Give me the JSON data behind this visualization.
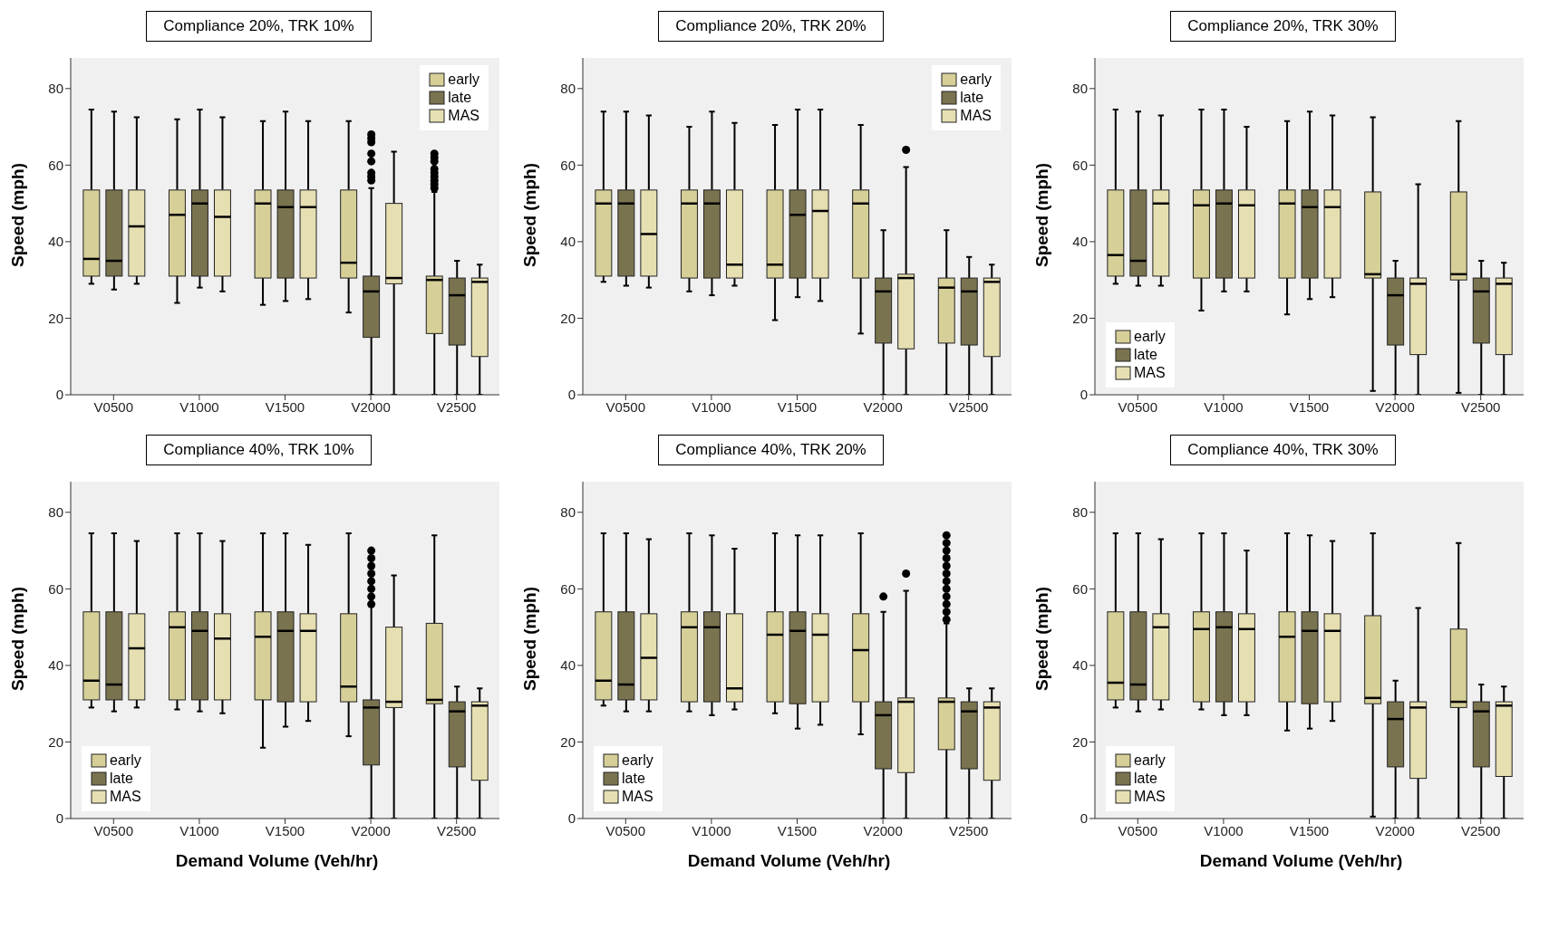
{
  "chart_data": [
    {
      "type": "box",
      "title": "Compliance 20%,  TRK 10%",
      "ylabel": "Speed (mph)",
      "categories": [
        "V0500",
        "V1000",
        "V1500",
        "V2000",
        "V2500"
      ],
      "ylim": [
        0,
        88
      ],
      "yticks": [
        0,
        20,
        40,
        60,
        80
      ],
      "legend": "top right",
      "series": [
        {
          "name": "early",
          "color": "#d7cf98",
          "boxes": [
            {
              "low": 29,
              "q1": 31,
              "median": 35.5,
              "q3": 53.5,
              "high": 74.5
            },
            {
              "low": 24,
              "q1": 31,
              "median": 47,
              "q3": 53.5,
              "high": 72
            },
            {
              "low": 23.5,
              "q1": 30.5,
              "median": 50,
              "q3": 53.5,
              "high": 71.5
            },
            {
              "low": 21.5,
              "q1": 30.5,
              "median": 34.5,
              "q3": 53.5,
              "high": 71.5
            },
            {
              "low": 0,
              "q1": 16,
              "median": 30,
              "q3": 31,
              "high": 53,
              "outliers": [
                54,
                55,
                56,
                57,
                58,
                59,
                61,
                62,
                63
              ]
            }
          ]
        },
        {
          "name": "late",
          "color": "#7a734f",
          "boxes": [
            {
              "low": 27.5,
              "q1": 31,
              "median": 35,
              "q3": 53.5,
              "high": 74
            },
            {
              "low": 28,
              "q1": 31,
              "median": 50,
              "q3": 53.5,
              "high": 74.5
            },
            {
              "low": 24.5,
              "q1": 30.5,
              "median": 49,
              "q3": 53.5,
              "high": 74
            },
            {
              "low": 0,
              "q1": 15,
              "median": 27,
              "q3": 31,
              "high": 54,
              "outliers": [
                56,
                57,
                58,
                61,
                63,
                66,
                67,
                68
              ]
            },
            {
              "low": 0,
              "q1": 13,
              "median": 26,
              "q3": 30.5,
              "high": 35
            }
          ]
        },
        {
          "name": "MAS",
          "color": "#e6dfb2",
          "boxes": [
            {
              "low": 29,
              "q1": 31,
              "median": 44,
              "q3": 53.5,
              "high": 72.5
            },
            {
              "low": 27,
              "q1": 31,
              "median": 46.5,
              "q3": 53.5,
              "high": 72.5
            },
            {
              "low": 25,
              "q1": 30.5,
              "median": 49,
              "q3": 53.5,
              "high": 71.5
            },
            {
              "low": 0,
              "q1": 29,
              "median": 30.5,
              "q3": 50,
              "high": 63.5
            },
            {
              "low": 0,
              "q1": 10,
              "median": 29.5,
              "q3": 30.5,
              "high": 34
            }
          ]
        }
      ]
    },
    {
      "type": "box",
      "title": "Compliance 20%,  TRK 20%",
      "ylabel": "Speed (mph)",
      "categories": [
        "V0500",
        "V1000",
        "V1500",
        "V2000",
        "V2500"
      ],
      "ylim": [
        0,
        88
      ],
      "yticks": [
        0,
        20,
        40,
        60,
        80
      ],
      "legend": "top right",
      "series": [
        {
          "name": "early",
          "color": "#d7cf98",
          "boxes": [
            {
              "low": 29.5,
              "q1": 31,
              "median": 50,
              "q3": 53.5,
              "high": 74
            },
            {
              "low": 27,
              "q1": 30.5,
              "median": 50,
              "q3": 53.5,
              "high": 70
            },
            {
              "low": 19.5,
              "q1": 30.5,
              "median": 34,
              "q3": 53.5,
              "high": 70.5
            },
            {
              "low": 16,
              "q1": 30.5,
              "median": 50,
              "q3": 53.5,
              "high": 70.5
            },
            {
              "low": 0,
              "q1": 13.5,
              "median": 28,
              "q3": 30.5,
              "high": 43
            }
          ]
        },
        {
          "name": "late",
          "color": "#7a734f",
          "boxes": [
            {
              "low": 28.5,
              "q1": 31,
              "median": 50,
              "q3": 53.5,
              "high": 74
            },
            {
              "low": 26,
              "q1": 30.5,
              "median": 50,
              "q3": 53.5,
              "high": 74
            },
            {
              "low": 25.5,
              "q1": 30.5,
              "median": 47,
              "q3": 53.5,
              "high": 74.5
            },
            {
              "low": 0,
              "q1": 13.5,
              "median": 27,
              "q3": 30.5,
              "high": 43
            },
            {
              "low": 0,
              "q1": 13,
              "median": 27,
              "q3": 30.5,
              "high": 36
            }
          ]
        },
        {
          "name": "MAS",
          "color": "#e6dfb2",
          "boxes": [
            {
              "low": 28,
              "q1": 31,
              "median": 42,
              "q3": 53.5,
              "high": 73
            },
            {
              "low": 28.5,
              "q1": 30.5,
              "median": 34,
              "q3": 53.5,
              "high": 71
            },
            {
              "low": 24.5,
              "q1": 30.5,
              "median": 48,
              "q3": 53.5,
              "high": 74.5
            },
            {
              "low": 0,
              "q1": 12,
              "median": 30.5,
              "q3": 31.5,
              "high": 59.5,
              "outliers": [
                64
              ]
            },
            {
              "low": 0,
              "q1": 10,
              "median": 29.5,
              "q3": 30.5,
              "high": 34
            }
          ]
        }
      ]
    },
    {
      "type": "box",
      "title": "Compliance 20%,  TRK 30%",
      "ylabel": "Speed (mph)",
      "categories": [
        "V0500",
        "V1000",
        "V1500",
        "V2000",
        "V2500"
      ],
      "ylim": [
        0,
        88
      ],
      "yticks": [
        0,
        20,
        40,
        60,
        80
      ],
      "legend": "bottom left",
      "series": [
        {
          "name": "early",
          "color": "#d7cf98",
          "boxes": [
            {
              "low": 29,
              "q1": 31,
              "median": 36.5,
              "q3": 53.5,
              "high": 74.5
            },
            {
              "low": 22,
              "q1": 30.5,
              "median": 49.5,
              "q3": 53.5,
              "high": 74.5
            },
            {
              "low": 21,
              "q1": 30.5,
              "median": 50,
              "q3": 53.5,
              "high": 71.5
            },
            {
              "low": 1,
              "q1": 30.5,
              "median": 31.5,
              "q3": 53,
              "high": 72.5
            },
            {
              "low": 0.5,
              "q1": 30,
              "median": 31.5,
              "q3": 53,
              "high": 71.5
            }
          ]
        },
        {
          "name": "late",
          "color": "#7a734f",
          "boxes": [
            {
              "low": 28.5,
              "q1": 31,
              "median": 35,
              "q3": 53.5,
              "high": 74
            },
            {
              "low": 27,
              "q1": 30.5,
              "median": 50,
              "q3": 53.5,
              "high": 74.5
            },
            {
              "low": 25,
              "q1": 30.5,
              "median": 49,
              "q3": 53.5,
              "high": 74
            },
            {
              "low": 0,
              "q1": 13,
              "median": 26,
              "q3": 30.5,
              "high": 35
            },
            {
              "low": 0,
              "q1": 13.5,
              "median": 27,
              "q3": 30.5,
              "high": 35
            }
          ]
        },
        {
          "name": "MAS",
          "color": "#e6dfb2",
          "boxes": [
            {
              "low": 28.5,
              "q1": 31,
              "median": 50,
              "q3": 53.5,
              "high": 73
            },
            {
              "low": 27,
              "q1": 30.5,
              "median": 49.5,
              "q3": 53.5,
              "high": 70
            },
            {
              "low": 25.5,
              "q1": 30.5,
              "median": 49,
              "q3": 53.5,
              "high": 73
            },
            {
              "low": 0,
              "q1": 10.5,
              "median": 29,
              "q3": 30.5,
              "high": 55
            },
            {
              "low": 0,
              "q1": 10.5,
              "median": 29,
              "q3": 30.5,
              "high": 34.5
            }
          ]
        }
      ]
    },
    {
      "type": "box",
      "title": "Compliance 40%,  TRK 10%",
      "xlabel": "Demand Volume (Veh/hr)",
      "ylabel": "Speed (mph)",
      "categories": [
        "V0500",
        "V1000",
        "V1500",
        "V2000",
        "V2500"
      ],
      "ylim": [
        0,
        88
      ],
      "yticks": [
        0,
        20,
        40,
        60,
        80
      ],
      "legend": "bottom left",
      "series": [
        {
          "name": "early",
          "color": "#d7cf98",
          "boxes": [
            {
              "low": 29,
              "q1": 31,
              "median": 36,
              "q3": 54,
              "high": 74.5
            },
            {
              "low": 28.5,
              "q1": 31,
              "median": 50,
              "q3": 54,
              "high": 74.5
            },
            {
              "low": 18.5,
              "q1": 31,
              "median": 47.5,
              "q3": 54,
              "high": 74.5
            },
            {
              "low": 21.5,
              "q1": 30.5,
              "median": 34.5,
              "q3": 53.5,
              "high": 74.5
            },
            {
              "low": 0,
              "q1": 30,
              "median": 31,
              "q3": 51,
              "high": 74
            }
          ]
        },
        {
          "name": "late",
          "color": "#7a734f",
          "boxes": [
            {
              "low": 28,
              "q1": 31,
              "median": 35,
              "q3": 54,
              "high": 74.5
            },
            {
              "low": 28,
              "q1": 31,
              "median": 49,
              "q3": 54,
              "high": 74.5
            },
            {
              "low": 24,
              "q1": 30.5,
              "median": 49,
              "q3": 54,
              "high": 74.5
            },
            {
              "low": 0,
              "q1": 14,
              "median": 29,
              "q3": 31,
              "high": 55.5,
              "outliers": [
                56,
                58,
                60,
                62,
                64,
                66,
                68,
                70
              ]
            },
            {
              "low": 0,
              "q1": 13.5,
              "median": 28,
              "q3": 30.5,
              "high": 34.5
            }
          ]
        },
        {
          "name": "MAS",
          "color": "#e6dfb2",
          "boxes": [
            {
              "low": 29,
              "q1": 31,
              "median": 44.5,
              "q3": 53.5,
              "high": 72.5
            },
            {
              "low": 27.5,
              "q1": 31,
              "median": 47,
              "q3": 53.5,
              "high": 72.5
            },
            {
              "low": 25.5,
              "q1": 30.5,
              "median": 49,
              "q3": 53.5,
              "high": 71.5
            },
            {
              "low": 0,
              "q1": 29,
              "median": 30.5,
              "q3": 50,
              "high": 63.5
            },
            {
              "low": 0,
              "q1": 10,
              "median": 29.5,
              "q3": 30.5,
              "high": 34
            }
          ]
        }
      ]
    },
    {
      "type": "box",
      "title": "Compliance 40%,  TRK 20%",
      "xlabel": "Demand Volume (Veh/hr)",
      "ylabel": "Speed (mph)",
      "categories": [
        "V0500",
        "V1000",
        "V1500",
        "V2000",
        "V2500"
      ],
      "ylim": [
        0,
        88
      ],
      "yticks": [
        0,
        20,
        40,
        60,
        80
      ],
      "legend": "bottom left",
      "series": [
        {
          "name": "early",
          "color": "#d7cf98",
          "boxes": [
            {
              "low": 29.5,
              "q1": 31,
              "median": 36,
              "q3": 54,
              "high": 74.5
            },
            {
              "low": 28,
              "q1": 30.5,
              "median": 50,
              "q3": 54,
              "high": 74.5
            },
            {
              "low": 27.5,
              "q1": 30.5,
              "median": 48,
              "q3": 54,
              "high": 74.5
            },
            {
              "low": 22,
              "q1": 30.5,
              "median": 44,
              "q3": 53.5,
              "high": 74.5
            },
            {
              "low": 0,
              "q1": 18,
              "median": 30.5,
              "q3": 31.5,
              "high": 51,
              "outliers": [
                52,
                54,
                56,
                58,
                60,
                62,
                64,
                66,
                68,
                70,
                72,
                74
              ]
            }
          ]
        },
        {
          "name": "late",
          "color": "#7a734f",
          "boxes": [
            {
              "low": 28,
              "q1": 31,
              "median": 35,
              "q3": 54,
              "high": 74.5
            },
            {
              "low": 27,
              "q1": 30.5,
              "median": 50,
              "q3": 54,
              "high": 74
            },
            {
              "low": 23.5,
              "q1": 30,
              "median": 49,
              "q3": 54,
              "high": 74
            },
            {
              "low": 0,
              "q1": 13,
              "median": 27,
              "q3": 30.5,
              "high": 54,
              "outliers": [
                58
              ]
            },
            {
              "low": 0,
              "q1": 13,
              "median": 28,
              "q3": 30.5,
              "high": 34
            }
          ]
        },
        {
          "name": "MAS",
          "color": "#e6dfb2",
          "boxes": [
            {
              "low": 28,
              "q1": 31,
              "median": 42,
              "q3": 53.5,
              "high": 73
            },
            {
              "low": 28.5,
              "q1": 30.5,
              "median": 34,
              "q3": 53.5,
              "high": 70.5
            },
            {
              "low": 24.5,
              "q1": 30.5,
              "median": 48,
              "q3": 53.5,
              "high": 74
            },
            {
              "low": 0,
              "q1": 12,
              "median": 30.5,
              "q3": 31.5,
              "high": 59.5,
              "outliers": [
                64
              ]
            },
            {
              "low": 0,
              "q1": 10,
              "median": 29,
              "q3": 30.5,
              "high": 34
            }
          ]
        }
      ]
    },
    {
      "type": "box",
      "title": "Compliance 40%,  TRK 30%",
      "xlabel": "Demand Volume (Veh/hr)",
      "ylabel": "Speed (mph)",
      "categories": [
        "V0500",
        "V1000",
        "V1500",
        "V2000",
        "V2500"
      ],
      "ylim": [
        0,
        88
      ],
      "yticks": [
        0,
        20,
        40,
        60,
        80
      ],
      "legend": "bottom left",
      "series": [
        {
          "name": "early",
          "color": "#d7cf98",
          "boxes": [
            {
              "low": 29,
              "q1": 31,
              "median": 35.5,
              "q3": 54,
              "high": 74.5
            },
            {
              "low": 28.5,
              "q1": 30.5,
              "median": 49.5,
              "q3": 54,
              "high": 74.5
            },
            {
              "low": 23,
              "q1": 30.5,
              "median": 47.5,
              "q3": 54,
              "high": 74.5
            },
            {
              "low": 0.5,
              "q1": 30,
              "median": 31.5,
              "q3": 53,
              "high": 74.5
            },
            {
              "low": 0,
              "q1": 29,
              "median": 30.5,
              "q3": 49.5,
              "high": 72
            }
          ]
        },
        {
          "name": "late",
          "color": "#7a734f",
          "boxes": [
            {
              "low": 28,
              "q1": 31,
              "median": 35,
              "q3": 54,
              "high": 74.5
            },
            {
              "low": 27,
              "q1": 30.5,
              "median": 50,
              "q3": 54,
              "high": 74.5
            },
            {
              "low": 23.5,
              "q1": 30,
              "median": 49,
              "q3": 54,
              "high": 74
            },
            {
              "low": 0,
              "q1": 13.5,
              "median": 26,
              "q3": 30.5,
              "high": 36
            },
            {
              "low": 0,
              "q1": 13.5,
              "median": 28,
              "q3": 30.5,
              "high": 35
            }
          ]
        },
        {
          "name": "MAS",
          "color": "#e6dfb2",
          "boxes": [
            {
              "low": 28.5,
              "q1": 31,
              "median": 50,
              "q3": 53.5,
              "high": 73
            },
            {
              "low": 27,
              "q1": 30.5,
              "median": 49.5,
              "q3": 53.5,
              "high": 70
            },
            {
              "low": 25.5,
              "q1": 30.5,
              "median": 49,
              "q3": 53.5,
              "high": 72.5
            },
            {
              "low": 0,
              "q1": 10.5,
              "median": 29,
              "q3": 30.5,
              "high": 55
            },
            {
              "low": 0,
              "q1": 11,
              "median": 29.5,
              "q3": 30.5,
              "high": 34.5
            }
          ]
        }
      ]
    }
  ]
}
